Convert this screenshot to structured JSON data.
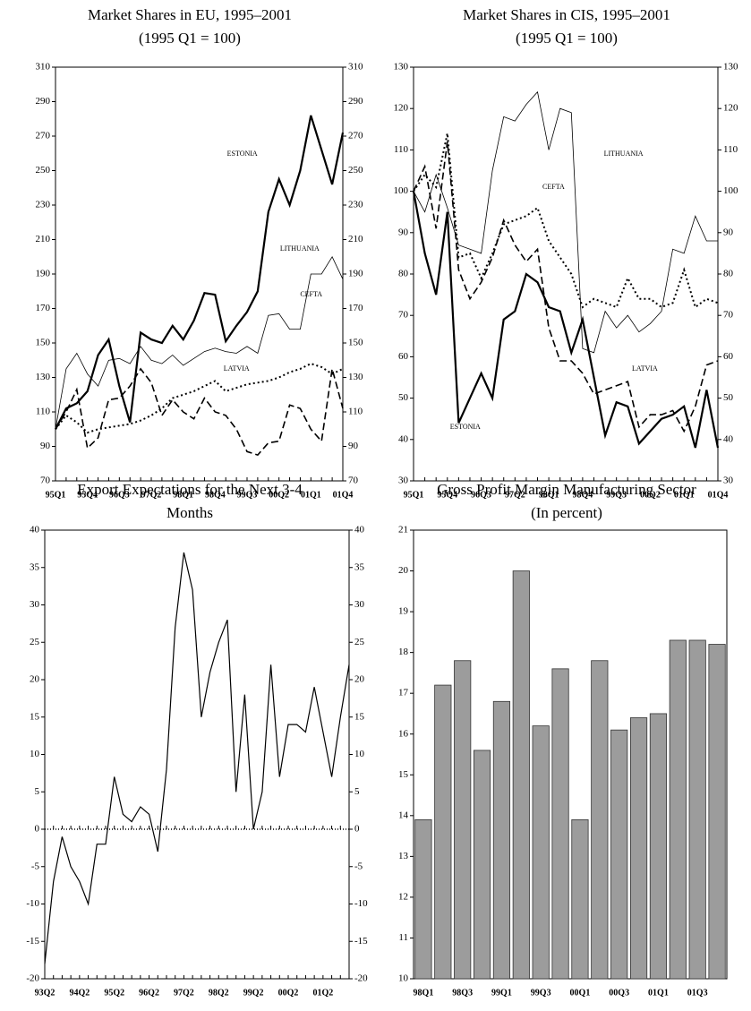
{
  "chart_data": [
    {
      "type": "line",
      "title": "Market Shares in EU, 1995–2001",
      "subtitle": "(1995 Q1 = 100)",
      "categories": [
        "95Q1",
        null,
        null,
        "95Q4",
        null,
        null,
        "96Q3",
        null,
        null,
        "97Q2",
        null,
        null,
        "98Q1",
        null,
        null,
        "98Q4",
        null,
        null,
        "99Q3",
        null,
        null,
        "00Q2",
        null,
        null,
        "01Q1",
        null,
        null,
        "01Q4"
      ],
      "ylim": [
        70,
        310
      ],
      "yticks": [
        70,
        90,
        110,
        130,
        150,
        170,
        190,
        210,
        230,
        250,
        270,
        290,
        310
      ],
      "right_axis": true,
      "series": [
        {
          "name": "ESTONIA",
          "color": "#000000",
          "style": "solid",
          "width": 2.2,
          "values": [
            100,
            112,
            115,
            122,
            143,
            152,
            125,
            104,
            156,
            152,
            150,
            160,
            152,
            163,
            179,
            178,
            151,
            160,
            168,
            180,
            226,
            245,
            230,
            250,
            282,
            262,
            242,
            272
          ]
        },
        {
          "name": "LITHUANIA",
          "color": "#000000",
          "style": "solid",
          "width": 0.8,
          "values": [
            100,
            135,
            144,
            132,
            125,
            140,
            141,
            138,
            148,
            140,
            138,
            143,
            137,
            141,
            145,
            147,
            145,
            144,
            148,
            144,
            166,
            167,
            158,
            158,
            190,
            190,
            200,
            187
          ]
        },
        {
          "name": "CEFTA",
          "color": "#000000",
          "style": "dotted",
          "width": 2,
          "values": [
            100,
            108,
            104,
            98,
            100,
            101,
            102,
            103,
            105,
            108,
            112,
            118,
            120,
            122,
            125,
            128,
            122,
            124,
            126,
            127,
            128,
            130,
            133,
            135,
            138,
            136,
            132,
            135
          ]
        },
        {
          "name": "LATVIA",
          "color": "#000000",
          "style": "dashed",
          "width": 1.6,
          "values": [
            100,
            110,
            123,
            89,
            95,
            117,
            118,
            125,
            135,
            127,
            108,
            117,
            110,
            106,
            118,
            110,
            108,
            100,
            87,
            85,
            92,
            93,
            114,
            112,
            100,
            93,
            135,
            112
          ]
        }
      ]
    },
    {
      "type": "line",
      "title": "Market Shares in CIS, 1995–2001",
      "subtitle": "(1995 Q1 = 100)",
      "categories": [
        "95Q1",
        null,
        null,
        "95Q4",
        null,
        null,
        "96Q3",
        null,
        null,
        "97Q2",
        null,
        null,
        "98Q1",
        null,
        null,
        "98Q4",
        null,
        null,
        "99Q3",
        null,
        null,
        "00Q2",
        null,
        null,
        "01Q1",
        null,
        null,
        "01Q4"
      ],
      "ylim": [
        30,
        130
      ],
      "yticks": [
        30,
        40,
        50,
        60,
        70,
        80,
        90,
        100,
        110,
        120,
        130
      ],
      "right_axis": true,
      "series": [
        {
          "name": "LITHUANIA",
          "color": "#000000",
          "style": "solid",
          "width": 0.8,
          "values": [
            100,
            95,
            104,
            96,
            87,
            86,
            85,
            105,
            118,
            117,
            121,
            124,
            110,
            120,
            119,
            62,
            61,
            71,
            67,
            70,
            66,
            68,
            71,
            86,
            85,
            94,
            88,
            88
          ]
        },
        {
          "name": "CEFTA",
          "color": "#000000",
          "style": "dotted",
          "width": 2,
          "values": [
            100,
            104,
            101,
            114,
            84,
            85,
            79,
            85,
            92,
            93,
            94,
            96,
            88,
            84,
            80,
            72,
            74,
            73,
            72,
            79,
            74,
            74,
            72,
            73,
            81,
            72,
            74,
            73
          ]
        },
        {
          "name": "LATVIA",
          "color": "#000000",
          "style": "dashed",
          "width": 1.6,
          "values": [
            100,
            106,
            91,
            112,
            81,
            74,
            78,
            84,
            93,
            87,
            83,
            86,
            67,
            59,
            59,
            56,
            51,
            52,
            53,
            54,
            43,
            46,
            46,
            47,
            42,
            48,
            58,
            59
          ]
        },
        {
          "name": "ESTONIA",
          "color": "#000000",
          "style": "solid",
          "width": 2.2,
          "values": [
            100,
            85,
            75,
            95,
            44,
            50,
            56,
            50,
            69,
            71,
            80,
            78,
            72,
            71,
            61,
            69,
            55,
            41,
            49,
            48,
            39,
            42,
            45,
            46,
            48,
            38,
            52,
            38
          ]
        }
      ]
    },
    {
      "type": "line",
      "title": "Export Expectations for the Next 3-4 Months",
      "categories": [
        "93Q2",
        null,
        null,
        null,
        "94Q2",
        null,
        null,
        null,
        "95Q2",
        null,
        null,
        null,
        "96Q2",
        null,
        null,
        null,
        "97Q2",
        null,
        null,
        null,
        "98Q2",
        null,
        null,
        null,
        "99Q2",
        null,
        null,
        null,
        "00Q2",
        null,
        null,
        null,
        "01Q2",
        null,
        null,
        null
      ],
      "ylim": [
        -20,
        40
      ],
      "yticks": [
        -20,
        -15,
        -10,
        -5,
        0,
        5,
        10,
        15,
        20,
        25,
        30,
        35,
        40
      ],
      "right_axis": true,
      "zero_line": true,
      "series": [
        {
          "color": "#000000",
          "style": "solid",
          "width": 1.2,
          "values": [
            -18,
            -7,
            -1,
            -5,
            -7,
            -10,
            -2,
            -2,
            7,
            2,
            1,
            3,
            2,
            -3,
            8,
            27,
            37,
            32,
            15,
            21,
            25,
            28,
            5,
            18,
            0,
            5,
            22,
            7,
            14,
            14,
            13,
            19,
            13,
            7,
            15,
            22
          ]
        }
      ]
    },
    {
      "type": "bar",
      "title": "Gross Profit Margin Manufacturing Sector",
      "subtitle": "(In percent)",
      "categories": [
        "98Q1",
        null,
        "98Q3",
        null,
        "99Q1",
        null,
        "99Q3",
        null,
        "00Q1",
        null,
        "00Q3",
        null,
        "01Q1",
        null,
        "01Q3",
        null
      ],
      "ylim": [
        10,
        21
      ],
      "yticks": [
        10,
        11,
        12,
        13,
        14,
        15,
        16,
        17,
        18,
        19,
        20,
        21
      ],
      "right_axis": false,
      "color": "#9c9c9c",
      "values": [
        13.9,
        17.2,
        17.8,
        15.6,
        16.8,
        20,
        16.2,
        17.6,
        13.9,
        17.8,
        16.1,
        16.4,
        16.5,
        18.3,
        18.3,
        18.2
      ]
    }
  ]
}
